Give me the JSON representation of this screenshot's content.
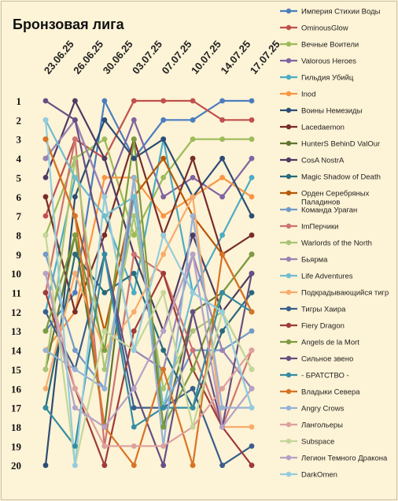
{
  "chart_data": {
    "type": "line",
    "title": "Бронзовая лига",
    "x": [
      "23.06.25",
      "26.06.25",
      "30.06.25",
      "03.07.25",
      "07.07.25",
      "10.07.25",
      "14.07.25",
      "17.07.25"
    ],
    "ylim": [
      1,
      20
    ],
    "y_reversed": true,
    "y_ticks": [
      1,
      2,
      3,
      4,
      5,
      6,
      7,
      8,
      9,
      10,
      11,
      12,
      13,
      14,
      15,
      16,
      17,
      18,
      19,
      20
    ],
    "grid": false,
    "legend_position": "right",
    "series": [
      {
        "name": "Империя Стихии Воды",
        "color": "#4a7dbf",
        "values": [
          13,
          11,
          1,
          4,
          2,
          2,
          1,
          1
        ]
      },
      {
        "name": "OminousGlow",
        "color": "#c0504d",
        "values": [
          7,
          3,
          4,
          1,
          1,
          1,
          2,
          2
        ]
      },
      {
        "name": "Вечные Воители",
        "color": "#9bbb59",
        "values": [
          8,
          4,
          3,
          8,
          5,
          3,
          3,
          3
        ]
      },
      {
        "name": "Valorous Heroes",
        "color": "#8064a2",
        "values": [
          4,
          2,
          6,
          2,
          6,
          5,
          6,
          4
        ]
      },
      {
        "name": "Гильдия Убийц",
        "color": "#4bacc6",
        "values": [
          12,
          5,
          7,
          11,
          3,
          11,
          8,
          5
        ]
      },
      {
        "name": "Inod",
        "color": "#f79646",
        "values": [
          14,
          12,
          5,
          5,
          7,
          6,
          5,
          6
        ]
      },
      {
        "name": "Воины Немезиды",
        "color": "#2c4d75",
        "values": [
          20,
          6,
          2,
          4,
          3,
          6,
          4,
          7
        ]
      },
      {
        "name": "Lacedaemon",
        "color": "#772c2a",
        "values": [
          6,
          12,
          8,
          3,
          8,
          4,
          9,
          8
        ]
      },
      {
        "name": "HunterS BehinD ValOur",
        "color": "#5f7530",
        "values": [
          15,
          8,
          18,
          5,
          18,
          12,
          11,
          9
        ]
      },
      {
        "name": "CosA NostrA",
        "color": "#4d3b62",
        "values": [
          5,
          1,
          4,
          9,
          13,
          8,
          12,
          10
        ]
      },
      {
        "name": "Magic Shadow of Death",
        "color": "#276a7c",
        "values": [
          17,
          9,
          11,
          10,
          14,
          17,
          13,
          11
        ]
      },
      {
        "name": "Орден Серебряных Паладинов",
        "color": "#b65708",
        "values": [
          3,
          7,
          13,
          6,
          4,
          7,
          9,
          12
        ]
      },
      {
        "name": "Команда Ураган",
        "color": "#729aca",
        "values": [
          9,
          14,
          16,
          6,
          17,
          14,
          14,
          13
        ]
      },
      {
        "name": "ImПерчики",
        "color": "#cd7371",
        "values": [
          11,
          3,
          19,
          9,
          10,
          14,
          18,
          14
        ]
      },
      {
        "name": "Warlords of the North",
        "color": "#a9c476",
        "values": [
          15,
          4,
          15,
          7,
          16,
          13,
          12,
          15
        ]
      },
      {
        "name": "Бьярма",
        "color": "#9983b5",
        "values": [
          4,
          2,
          6,
          14,
          15,
          9,
          14,
          16
        ]
      },
      {
        "name": "Life Adventures",
        "color": "#6fbdd1",
        "values": [
          2,
          5,
          7,
          6,
          17,
          11,
          12,
          17
        ]
      },
      {
        "name": "Подкрадывающийся тигр",
        "color": "#f9ab6b",
        "values": [
          16,
          10,
          14,
          12,
          9,
          6,
          18,
          18
        ]
      },
      {
        "name": "Тигры Хаира",
        "color": "#3a5f8e",
        "values": [
          12,
          15,
          9,
          17,
          17,
          16,
          20,
          19
        ]
      },
      {
        "name": "Fiery Dragon",
        "color": "#9e3a38",
        "values": [
          11,
          16,
          20,
          13,
          10,
          15,
          18,
          20
        ]
      },
      {
        "name": "Angels de la Mort",
        "color": "#7d9c40",
        "values": [
          13,
          8,
          14,
          3,
          18,
          15,
          11,
          9
        ]
      },
      {
        "name": "Сильное звено",
        "color": "#664f83",
        "values": [
          1,
          2,
          9,
          16,
          20,
          12,
          18,
          10
        ]
      },
      {
        "name": "- БРАТСТВО -",
        "color": "#358ca3",
        "values": [
          17,
          19,
          9,
          18,
          17,
          17,
          11,
          12
        ]
      },
      {
        "name": "Владыки Севера",
        "color": "#d87325",
        "values": [
          3,
          7,
          18,
          20,
          15,
          20,
          9,
          12
        ]
      },
      {
        "name": "Angry Crows",
        "color": "#95b3d7",
        "values": [
          14,
          15,
          16,
          5,
          19,
          7,
          17,
          17
        ]
      },
      {
        "name": "Лангольеры",
        "color": "#dda09f",
        "values": [
          10,
          16,
          19,
          19,
          19,
          18,
          16,
          14
        ]
      },
      {
        "name": "Subspace",
        "color": "#c3d69b",
        "values": [
          8,
          20,
          13,
          14,
          11,
          18,
          12,
          15
        ]
      },
      {
        "name": "Легион Темного Дракона",
        "color": "#b3a2c7",
        "values": [
          10,
          17,
          18,
          16,
          13,
          9,
          18,
          16
        ]
      },
      {
        "name": "DarkOmen",
        "color": "#93cddd",
        "values": [
          2,
          20,
          6,
          14,
          8,
          11,
          12,
          17
        ]
      }
    ]
  }
}
